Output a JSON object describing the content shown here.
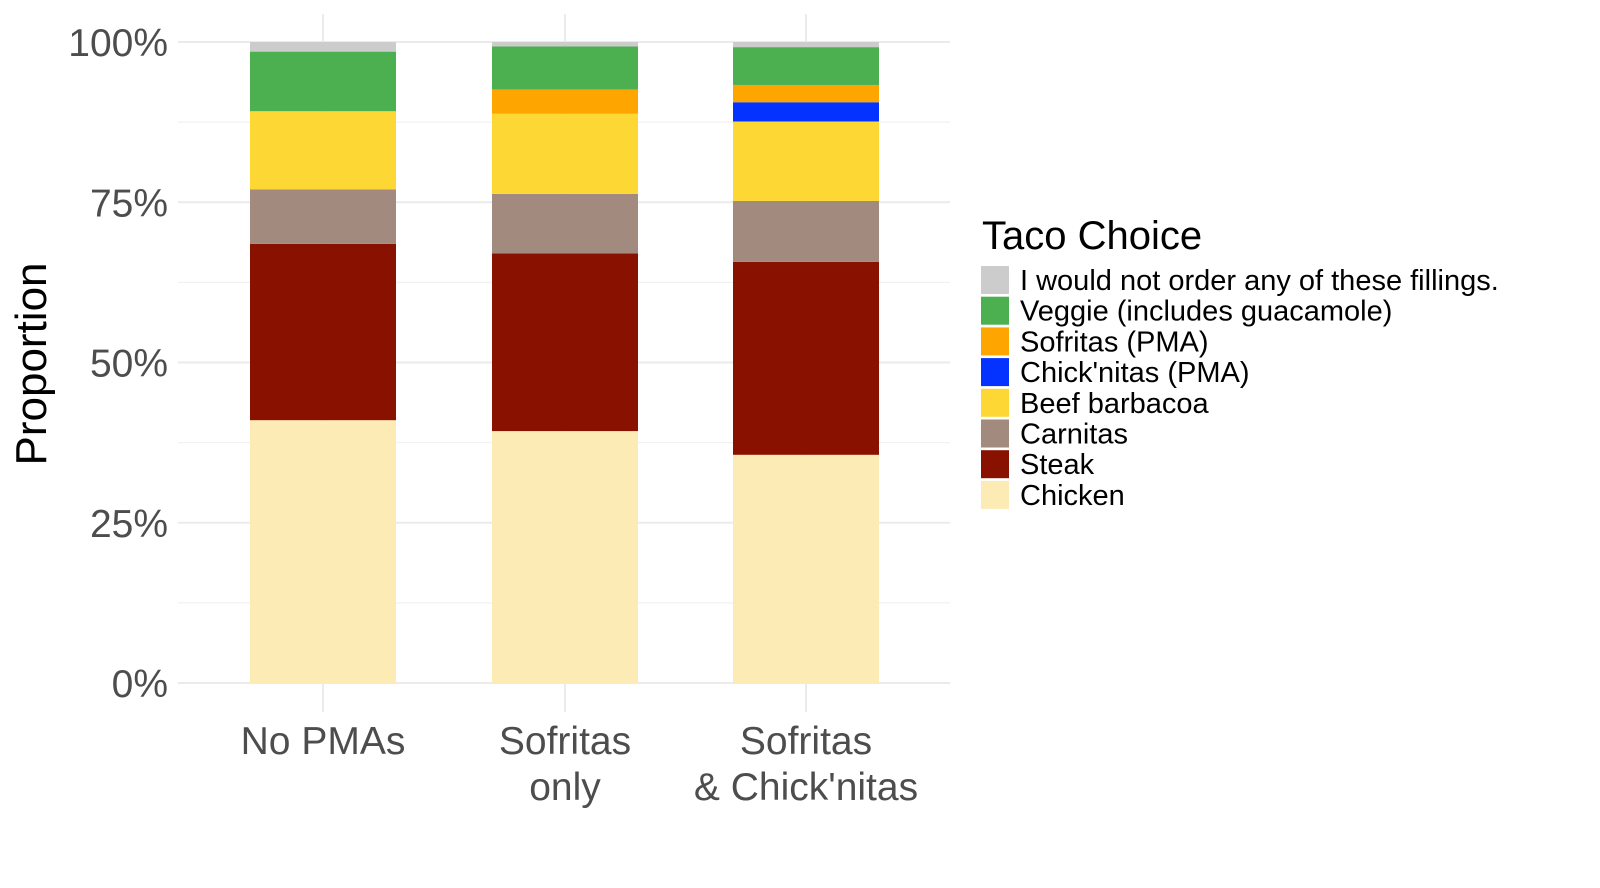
{
  "chart_data": {
    "type": "bar",
    "stacked": true,
    "categories": [
      "No PMAs",
      "Sofritas only",
      "Sofritas & Chick'nitas"
    ],
    "category_tick_labels": [
      [
        "No PMAs"
      ],
      [
        "Sofritas",
        "only"
      ],
      [
        "Sofritas",
        "& Chick'nitas"
      ]
    ],
    "series": [
      {
        "name": "Chicken",
        "color": "#FDEBB5",
        "values": [
          0.41,
          0.393,
          0.356
        ]
      },
      {
        "name": "Steak",
        "color": "#891100",
        "values": [
          0.275,
          0.277,
          0.301
        ]
      },
      {
        "name": "Carnitas",
        "color": "#A28A7E",
        "values": [
          0.085,
          0.093,
          0.095
        ]
      },
      {
        "name": "Beef barbacoa",
        "color": "#FDD835",
        "values": [
          0.122,
          0.125,
          0.124
        ]
      },
      {
        "name": "Chick'nitas (PMA)",
        "color": "#0433FF",
        "values": [
          0,
          0,
          0.03
        ]
      },
      {
        "name": "Sofritas (PMA)",
        "color": "#FFA500",
        "values": [
          0,
          0.038,
          0.027
        ]
      },
      {
        "name": "Veggie (includes guacamole)",
        "color": "#4CAF50",
        "values": [
          0.093,
          0.067,
          0.059
        ]
      },
      {
        "name": "I would not order any of these fillings.",
        "color": "#CCCCCC",
        "values": [
          0.015,
          0.007,
          0.008
        ]
      }
    ],
    "ylabel": "Proportion",
    "xlabel": "",
    "ylim": [
      0,
      1
    ],
    "y_ticks": [
      0,
      0.25,
      0.5,
      0.75,
      1
    ],
    "y_tick_labels": [
      "0%",
      "25%",
      "50%",
      "75%",
      "100%"
    ],
    "grid": true,
    "legend": {
      "title": "Taco Choice",
      "position": "right",
      "order": [
        "I would not order any of these fillings.",
        "Veggie (includes guacamole)",
        "Sofritas (PMA)",
        "Chick'nitas (PMA)",
        "Beef barbacoa",
        "Carnitas",
        "Steak",
        "Chicken"
      ]
    }
  }
}
